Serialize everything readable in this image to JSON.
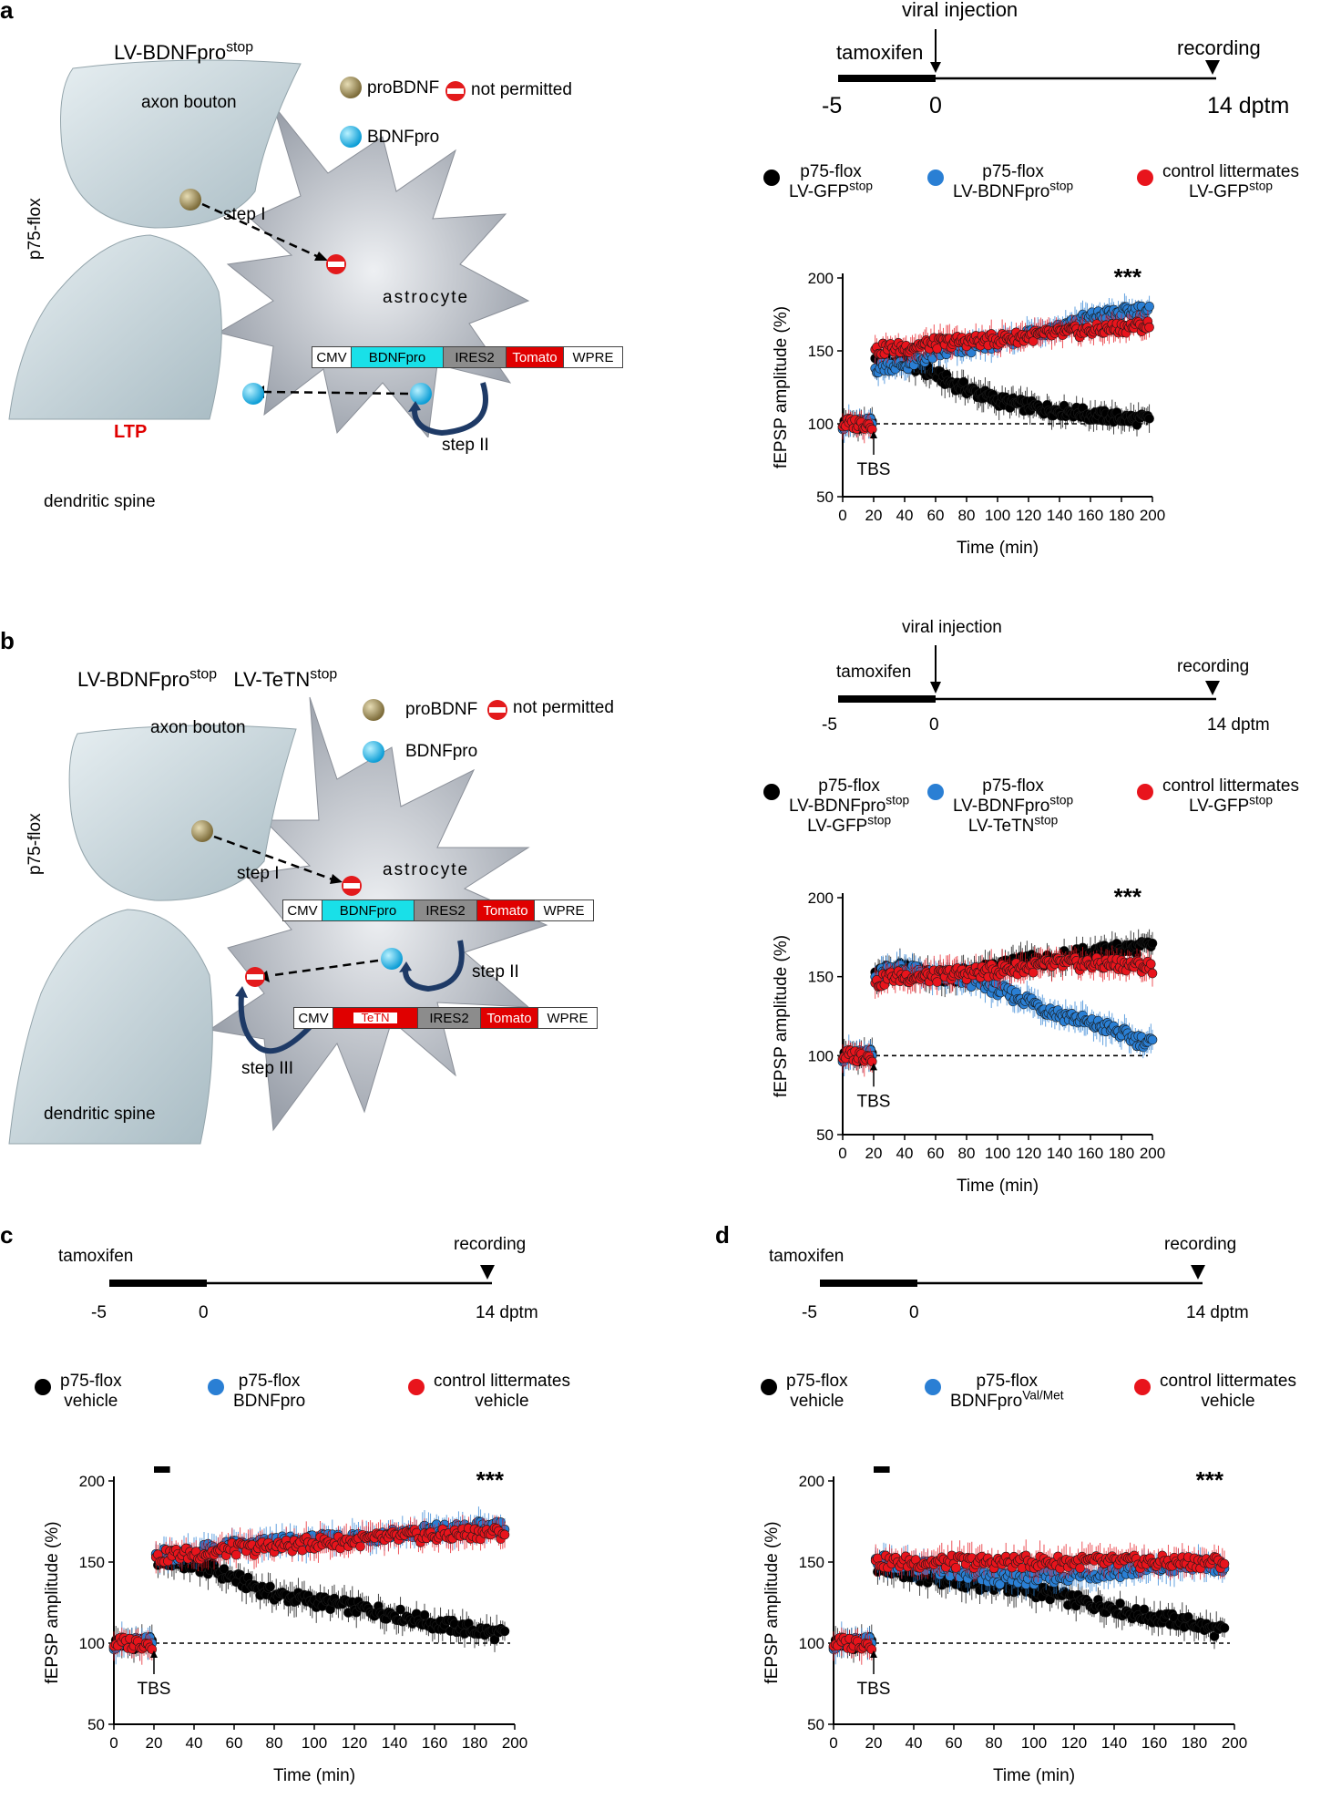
{
  "panels": {
    "a": {
      "label": "a",
      "diagram": {
        "title": "LV-BDNFpro",
        "title_sup": "stop",
        "axon_bouton": "axon bouton",
        "p75": "p75-flox",
        "dendritic_spine": "dendritic spine",
        "ltp": "LTP",
        "astrocyte": "astrocyte",
        "step1": "step I",
        "step2": "step II",
        "legend_probdnf": "proBDNF",
        "legend_not_permitted": "not permitted",
        "legend_bdnfpro": "BDNFpro",
        "construct": [
          "CMV",
          "BDNFpro",
          "IRES2",
          "Tomato",
          "WPRE"
        ]
      },
      "timeline": {
        "top_label": "viral injection",
        "left_label": "tamoxifen",
        "right_label": "recording",
        "ticks": [
          "-5",
          "0",
          "14 dptm"
        ]
      },
      "legend": [
        {
          "line1": "p75-flox",
          "line2": "LV-GFP",
          "line2_sup": "stop",
          "line3": "",
          "color": "#000000"
        },
        {
          "line1": "p75-flox",
          "line2": "LV-BDNFpro",
          "line2_sup": "stop",
          "line3": "",
          "color": "#2a7fd4"
        },
        {
          "line1": "control littermates",
          "line2": "LV-GFP",
          "line2_sup": "stop",
          "line3": "",
          "color": "#e8141c"
        }
      ]
    },
    "b": {
      "label": "b",
      "diagram": {
        "title1": "LV-BDNFpro",
        "title1_sup": "stop",
        "title2": "LV-TeTN",
        "title2_sup": "stop",
        "axon_bouton": "axon bouton",
        "p75": "p75-flox",
        "dendritic_spine": "dendritic spine",
        "astrocyte": "astrocyte",
        "step1": "step I",
        "step2": "step II",
        "step3": "step III",
        "legend_probdnf": "proBDNF",
        "legend_not_permitted": "not permitted",
        "legend_bdnfpro": "BDNFpro",
        "construct1": [
          "CMV",
          "BDNFpro",
          "IRES2",
          "Tomato",
          "WPRE"
        ],
        "construct2": [
          "CMV",
          "TeTN",
          "IRES2",
          "Tomato",
          "WPRE"
        ]
      },
      "timeline": {
        "top_label": "viral injection",
        "left_label": "tamoxifen",
        "right_label": "recording",
        "ticks": [
          "-5",
          "0",
          "14 dptm"
        ]
      },
      "legend": [
        {
          "line1": "p75-flox",
          "line2": "LV-BDNFpro",
          "line2_sup": "stop",
          "line3": "LV-GFP",
          "line3_sup": "stop",
          "color": "#000000"
        },
        {
          "line1": "p75-flox",
          "line2": "LV-BDNFpro",
          "line2_sup": "stop",
          "line3": "LV-TeTN",
          "line3_sup": "stop",
          "color": "#2a7fd4"
        },
        {
          "line1": "control littermates",
          "line2": "LV-GFP",
          "line2_sup": "stop",
          "line3": "",
          "color": "#e8141c"
        }
      ]
    },
    "c": {
      "label": "c",
      "timeline": {
        "left_label": "tamoxifen",
        "right_label": "recording",
        "ticks": [
          "-5",
          "0",
          "14 dptm"
        ]
      },
      "legend": [
        {
          "line1": "p75-flox",
          "line2": "vehicle",
          "line2_sup": "",
          "color": "#000000"
        },
        {
          "line1": "p75-flox",
          "line2": "BDNFpro",
          "line2_sup": "",
          "color": "#2a7fd4"
        },
        {
          "line1": "control littermates",
          "line2": "vehicle",
          "line2_sup": "",
          "color": "#e8141c"
        }
      ]
    },
    "d": {
      "label": "d",
      "timeline": {
        "left_label": "tamoxifen",
        "right_label": "recording",
        "ticks": [
          "-5",
          "0",
          "14 dptm"
        ]
      },
      "legend": [
        {
          "line1": "p75-flox",
          "line2": "vehicle",
          "line2_sup": "",
          "color": "#000000"
        },
        {
          "line1": "p75-flox",
          "line2": "BDNFpro",
          "line2_sup": "Val/Met",
          "color": "#2a7fd4"
        },
        {
          "line1": "control littermates",
          "line2": "vehicle",
          "line2_sup": "",
          "color": "#e8141c"
        }
      ]
    }
  },
  "colors": {
    "black_series": "#000000",
    "blue_series": "#2a7fd4",
    "red_series": "#e8141c",
    "astrocyte": "#a9aeb8",
    "bouton": "#c7d6dc",
    "gold": "#8a7a4a",
    "cyan": "#1ab3e8"
  },
  "chart_data": [
    {
      "panel": "a",
      "type": "scatter",
      "xlabel": "Time (min)",
      "ylabel": "fEPSP amplitude (%)",
      "xlim": [
        0,
        200
      ],
      "ylim": [
        50,
        200
      ],
      "xticks": [
        0,
        20,
        40,
        60,
        80,
        100,
        120,
        140,
        160,
        180,
        200
      ],
      "yticks": [
        50,
        100,
        150,
        200
      ],
      "baseline": 100,
      "annotation": "***",
      "tbs_label": "TBS",
      "tbs_x": 20,
      "bar": null,
      "series": [
        {
          "name": "p75-flox LV-GFP stop",
          "color": "#000000",
          "x": [
            0,
            10,
            19,
            21,
            30,
            40,
            50,
            60,
            70,
            80,
            90,
            100,
            110,
            120,
            130,
            140,
            150,
            160,
            170,
            180,
            190,
            198
          ],
          "y": [
            100,
            100,
            100,
            142,
            142,
            142,
            138,
            134,
            128,
            124,
            120,
            116,
            114,
            112,
            110,
            109,
            108,
            106,
            105,
            104,
            103,
            103
          ]
        },
        {
          "name": "p75-flox LV-BDNFpro stop",
          "color": "#2a7fd4",
          "x": [
            0,
            10,
            19,
            21,
            30,
            40,
            50,
            60,
            70,
            80,
            90,
            100,
            110,
            120,
            130,
            140,
            150,
            160,
            170,
            180,
            190,
            198
          ],
          "y": [
            100,
            100,
            100,
            138,
            140,
            140,
            144,
            148,
            150,
            152,
            154,
            156,
            158,
            162,
            164,
            166,
            170,
            173,
            175,
            176,
            178,
            178
          ]
        },
        {
          "name": "control littermates LV-GFP stop",
          "color": "#e8141c",
          "x": [
            0,
            10,
            19,
            21,
            30,
            40,
            50,
            60,
            70,
            80,
            90,
            100,
            110,
            120,
            130,
            140,
            150,
            160,
            170,
            180,
            190,
            198
          ],
          "y": [
            100,
            100,
            100,
            150,
            152,
            152,
            154,
            155,
            156,
            157,
            157,
            158,
            159,
            160,
            161,
            162,
            163,
            164,
            165,
            166,
            167,
            167
          ]
        }
      ]
    },
    {
      "panel": "b",
      "type": "scatter",
      "xlabel": "Time (min)",
      "ylabel": "fEPSP amplitude (%)",
      "xlim": [
        0,
        200
      ],
      "ylim": [
        50,
        200
      ],
      "xticks": [
        0,
        20,
        40,
        60,
        80,
        100,
        120,
        140,
        160,
        180,
        200
      ],
      "yticks": [
        50,
        100,
        150,
        200
      ],
      "baseline": 100,
      "annotation": "***",
      "tbs_label": "TBS",
      "tbs_x": 20,
      "bar": null,
      "series": [
        {
          "name": "p75-flox LV-BDNFpro stop LV-GFP stop",
          "color": "#000000",
          "x": [
            0,
            10,
            19,
            21,
            30,
            40,
            50,
            60,
            70,
            80,
            90,
            100,
            110,
            120,
            130,
            140,
            150,
            160,
            170,
            180,
            190,
            200
          ],
          "y": [
            100,
            100,
            100,
            150,
            155,
            155,
            152,
            150,
            150,
            152,
            154,
            156,
            158,
            160,
            160,
            162,
            164,
            165,
            166,
            168,
            168,
            170
          ]
        },
        {
          "name": "p75-flox LV-BDNFpro stop LV-TeTN stop",
          "color": "#2a7fd4",
          "x": [
            0,
            10,
            19,
            21,
            30,
            40,
            50,
            60,
            70,
            80,
            90,
            100,
            110,
            120,
            130,
            140,
            150,
            160,
            170,
            180,
            190,
            200
          ],
          "y": [
            100,
            100,
            100,
            150,
            155,
            155,
            152,
            150,
            150,
            148,
            146,
            142,
            138,
            135,
            130,
            126,
            124,
            120,
            118,
            114,
            110,
            108
          ]
        },
        {
          "name": "control littermates LV-GFP stop",
          "color": "#e8141c",
          "x": [
            0,
            10,
            19,
            21,
            30,
            40,
            50,
            60,
            70,
            80,
            90,
            100,
            110,
            120,
            130,
            140,
            150,
            160,
            170,
            180,
            190,
            200
          ],
          "y": [
            100,
            100,
            100,
            145,
            150,
            150,
            150,
            150,
            152,
            152,
            153,
            154,
            155,
            156,
            157,
            158,
            158,
            158,
            158,
            158,
            157,
            156
          ]
        }
      ]
    },
    {
      "panel": "c",
      "type": "scatter",
      "xlabel": "Time (min)",
      "ylabel": "fEPSP amplitude (%)",
      "xlim": [
        0,
        200
      ],
      "ylim": [
        50,
        200
      ],
      "xticks": [
        0,
        20,
        40,
        60,
        80,
        100,
        120,
        140,
        160,
        180,
        200
      ],
      "yticks": [
        50,
        100,
        150,
        200
      ],
      "baseline": 100,
      "annotation": "***",
      "tbs_label": "TBS",
      "tbs_x": 20,
      "bar": [
        20,
        28
      ],
      "series": [
        {
          "name": "p75-flox vehicle",
          "color": "#000000",
          "x": [
            0,
            10,
            19,
            21,
            30,
            40,
            50,
            60,
            70,
            80,
            90,
            100,
            110,
            120,
            130,
            140,
            150,
            160,
            170,
            180,
            190,
            195
          ],
          "y": [
            100,
            100,
            100,
            152,
            150,
            148,
            145,
            140,
            135,
            130,
            128,
            126,
            124,
            122,
            120,
            118,
            115,
            112,
            110,
            108,
            106,
            105
          ]
        },
        {
          "name": "p75-flox BDNFpro",
          "color": "#2a7fd4",
          "x": [
            0,
            10,
            19,
            21,
            30,
            40,
            50,
            60,
            70,
            80,
            90,
            100,
            110,
            120,
            130,
            140,
            150,
            160,
            170,
            180,
            190,
            195
          ],
          "y": [
            100,
            100,
            100,
            155,
            155,
            156,
            158,
            160,
            160,
            162,
            162,
            163,
            164,
            165,
            166,
            168,
            168,
            170,
            170,
            171,
            172,
            172
          ]
        },
        {
          "name": "control littermates vehicle",
          "color": "#e8141c",
          "x": [
            0,
            10,
            19,
            21,
            30,
            40,
            50,
            60,
            70,
            80,
            90,
            100,
            110,
            120,
            130,
            140,
            150,
            160,
            170,
            180,
            190,
            195
          ],
          "y": [
            100,
            100,
            100,
            152,
            155,
            155,
            156,
            158,
            158,
            160,
            160,
            162,
            162,
            163,
            164,
            165,
            166,
            166,
            167,
            168,
            168,
            168
          ]
        }
      ]
    },
    {
      "panel": "d",
      "type": "scatter",
      "xlabel": "Time (min)",
      "ylabel": "fEPSP amplitude (%)",
      "xlim": [
        0,
        200
      ],
      "ylim": [
        50,
        200
      ],
      "xticks": [
        0,
        20,
        40,
        60,
        80,
        100,
        120,
        140,
        160,
        180,
        200
      ],
      "yticks": [
        50,
        100,
        150,
        200
      ],
      "baseline": 100,
      "annotation": "***",
      "tbs_label": "TBS",
      "tbs_x": 20,
      "bar": [
        20,
        28
      ],
      "series": [
        {
          "name": "p75-flox vehicle",
          "color": "#000000",
          "x": [
            0,
            10,
            19,
            21,
            30,
            40,
            50,
            60,
            70,
            80,
            90,
            100,
            110,
            120,
            130,
            140,
            150,
            160,
            170,
            180,
            190,
            195
          ],
          "y": [
            100,
            100,
            100,
            148,
            145,
            142,
            140,
            138,
            137,
            136,
            134,
            132,
            130,
            126,
            124,
            122,
            118,
            116,
            114,
            112,
            108,
            107
          ]
        },
        {
          "name": "p75-flox BDNFpro Val/Met",
          "color": "#2a7fd4",
          "x": [
            0,
            10,
            19,
            21,
            30,
            40,
            50,
            60,
            70,
            80,
            90,
            100,
            110,
            120,
            130,
            140,
            150,
            160,
            170,
            180,
            190,
            195
          ],
          "y": [
            100,
            100,
            100,
            152,
            150,
            148,
            146,
            143,
            141,
            140,
            140,
            140,
            141,
            142,
            143,
            144,
            145,
            146,
            147,
            148,
            148,
            148
          ]
        },
        {
          "name": "control littermates vehicle",
          "color": "#e8141c",
          "x": [
            0,
            10,
            19,
            21,
            30,
            40,
            50,
            60,
            70,
            80,
            90,
            100,
            110,
            120,
            130,
            140,
            150,
            160,
            170,
            180,
            190,
            195
          ],
          "y": [
            100,
            100,
            100,
            150,
            150,
            150,
            150,
            150,
            150,
            150,
            150,
            150,
            150,
            150,
            150,
            150,
            150,
            150,
            150,
            150,
            150,
            150
          ]
        }
      ]
    }
  ]
}
